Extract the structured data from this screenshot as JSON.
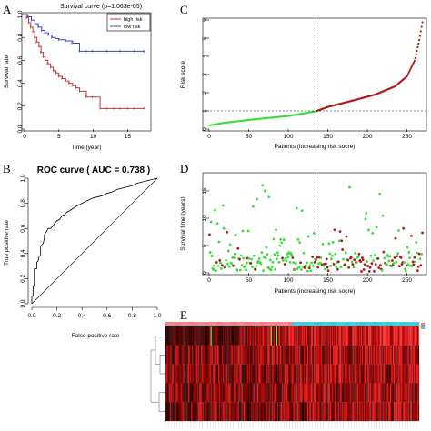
{
  "panels": {
    "A": "A",
    "B": "B",
    "C": "C",
    "D": "D",
    "E": "E"
  },
  "colors": {
    "high_risk": "#c0393b",
    "low_risk": "#3a44b4",
    "green_point": "#3ddc3d",
    "red_point": "#b21818",
    "heat_dark": "#2a0000",
    "heat_mid": "#8a0000",
    "heat_bright": "#ff2a2a",
    "anno_red": "#f08080",
    "anno_cyan": "#40c8d8"
  },
  "chart_data": [
    {
      "id": "A",
      "type": "line",
      "title": "Survival curve (p=1.063e-05)",
      "xlabel": "Time (year)",
      "ylabel": "Survival rate",
      "xlim": [
        0,
        18
      ],
      "ylim": [
        0,
        1
      ],
      "xticks": [
        0,
        5,
        10,
        15
      ],
      "yticks": [
        0.0,
        0.2,
        0.4,
        0.6,
        0.8,
        1.0
      ],
      "legend_position": "top-right",
      "series": [
        {
          "name": "high risk",
          "color": "#c0393b",
          "x": [
            0,
            0.3,
            0.6,
            0.9,
            1.2,
            1.5,
            1.8,
            2.1,
            2.4,
            2.7,
            3.0,
            3.4,
            3.8,
            4.2,
            4.6,
            5.0,
            5.5,
            6.0,
            6.5,
            7.0,
            7.5,
            8.0,
            9.0,
            10.0,
            11.0,
            12.0,
            13.0,
            14.0,
            15.0,
            16.0,
            17.5
          ],
          "y": [
            1.0,
            0.97,
            0.93,
            0.89,
            0.85,
            0.8,
            0.76,
            0.72,
            0.67,
            0.63,
            0.6,
            0.57,
            0.54,
            0.51,
            0.49,
            0.46,
            0.44,
            0.42,
            0.4,
            0.38,
            0.36,
            0.33,
            0.28,
            0.28,
            0.18,
            0.18,
            0.18,
            0.18,
            0.18,
            0.18,
            0.18
          ]
        },
        {
          "name": "low risk",
          "color": "#3a44b4",
          "x": [
            0,
            0.5,
            1.0,
            1.5,
            2.0,
            2.5,
            3.0,
            3.5,
            4.0,
            4.5,
            5.0,
            6.0,
            7.0,
            8.0,
            9.0,
            10.0,
            12.0,
            14.0,
            16.0,
            17.5
          ],
          "y": [
            1.0,
            0.98,
            0.95,
            0.92,
            0.89,
            0.86,
            0.84,
            0.82,
            0.8,
            0.79,
            0.78,
            0.77,
            0.75,
            0.68,
            0.68,
            0.68,
            0.68,
            0.68,
            0.68,
            0.68
          ]
        }
      ]
    },
    {
      "id": "C",
      "type": "scatter",
      "xlabel": "Patients (increasing risk socre)",
      "ylabel": "Risk score",
      "xlim": [
        0,
        270
      ],
      "ylim": [
        0,
        6
      ],
      "xticks": [
        0,
        50,
        100,
        150,
        200,
        250
      ],
      "yticks": [
        0,
        1,
        2,
        3,
        4,
        5,
        6
      ],
      "cutoff_x": 135,
      "cutoff_y": 1.0,
      "n": 270,
      "low_color": "#3ddc3d",
      "high_color": "#b21818",
      "curve": [
        [
          0,
          0.2
        ],
        [
          20,
          0.35
        ],
        [
          60,
          0.55
        ],
        [
          100,
          0.72
        ],
        [
          135,
          0.98
        ],
        [
          150,
          1.22
        ],
        [
          180,
          1.55
        ],
        [
          210,
          1.9
        ],
        [
          235,
          2.35
        ],
        [
          250,
          2.9
        ],
        [
          260,
          3.8
        ],
        [
          266,
          5.0
        ],
        [
          270,
          6.0
        ]
      ]
    },
    {
      "id": "B",
      "type": "line",
      "title": "ROC curve ( AUC =  0.738 )",
      "xlabel": "False positive rate",
      "ylabel": "True positive rate",
      "xlim": [
        0,
        1
      ],
      "ylim": [
        0,
        1
      ],
      "xticks": [
        0.0,
        0.2,
        0.4,
        0.6,
        0.8,
        1.0
      ],
      "yticks": [
        0.0,
        0.2,
        0.4,
        0.6,
        0.8,
        1.0
      ],
      "series": [
        {
          "color": "#000000",
          "x": [
            0.0,
            0.0,
            0.01,
            0.01,
            0.02,
            0.02,
            0.04,
            0.04,
            0.05,
            0.06,
            0.07,
            0.07,
            0.09,
            0.1,
            0.1,
            0.12,
            0.13,
            0.15,
            0.17,
            0.18,
            0.2,
            0.22,
            0.24,
            0.26,
            0.28,
            0.3,
            0.33,
            0.36,
            0.4,
            0.44,
            0.48,
            0.52,
            0.56,
            0.6,
            0.64,
            0.68,
            0.72,
            0.76,
            0.8,
            0.84,
            0.88,
            0.92,
            0.96,
            1.0
          ],
          "y": [
            0.0,
            0.06,
            0.06,
            0.14,
            0.14,
            0.28,
            0.28,
            0.33,
            0.34,
            0.38,
            0.38,
            0.46,
            0.48,
            0.52,
            0.55,
            0.58,
            0.6,
            0.6,
            0.62,
            0.64,
            0.66,
            0.67,
            0.7,
            0.71,
            0.73,
            0.74,
            0.76,
            0.78,
            0.8,
            0.82,
            0.84,
            0.85,
            0.86,
            0.88,
            0.89,
            0.91,
            0.92,
            0.93,
            0.94,
            0.96,
            0.97,
            0.98,
            0.99,
            1.0
          ]
        }
      ],
      "reference_line": [
        [
          0,
          0
        ],
        [
          1,
          1
        ]
      ]
    },
    {
      "id": "D",
      "type": "scatter",
      "xlabel": "Patients (increasing risk socre)",
      "ylabel": "Survival time (years)",
      "xlim": [
        0,
        270
      ],
      "ylim": [
        0,
        18
      ],
      "xticks": [
        0,
        50,
        100,
        150,
        200,
        250
      ],
      "yticks": [
        0,
        5,
        10,
        15
      ],
      "cutoff_x": 135,
      "n": 270,
      "alive_color": "#3ddc3d",
      "dead_color": "#b21818"
    },
    {
      "id": "E",
      "type": "heatmap",
      "rows": 5,
      "columns": 270,
      "annotation_colors": [
        "#f08080",
        "#40c8d8"
      ],
      "split_column": 135
    }
  ]
}
